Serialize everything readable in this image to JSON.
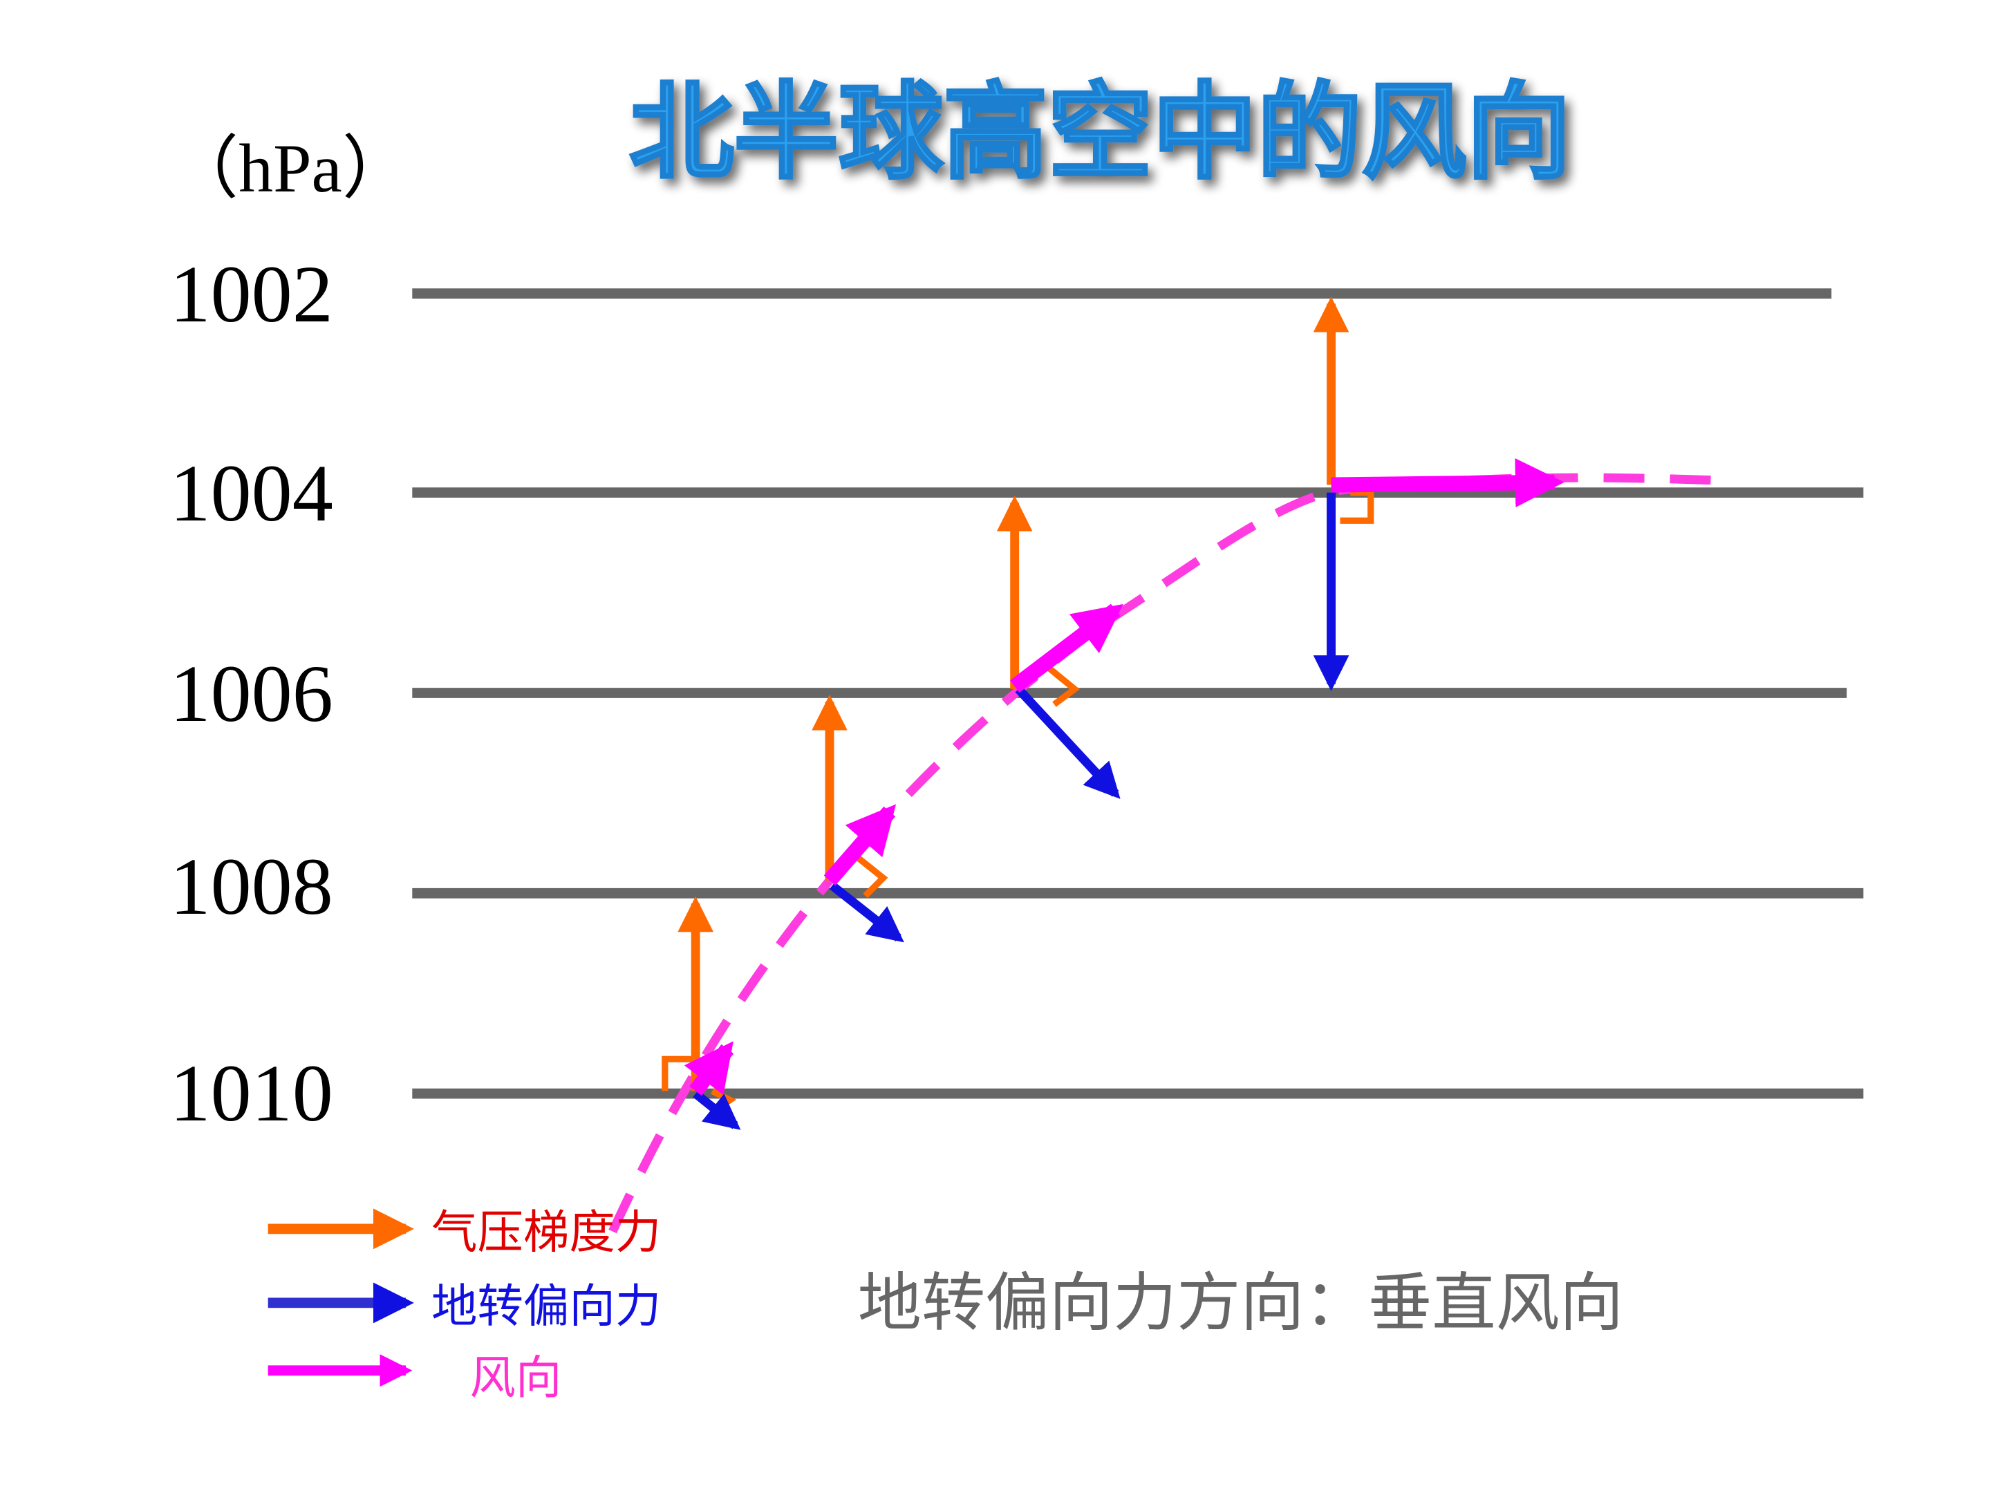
{
  "title": "北半球高空中的风向",
  "unit": "（hPa）",
  "isobars": [
    "1002",
    "1004",
    "1006",
    "1008",
    "1010"
  ],
  "legend": [
    "气压梯度力",
    "地转偏向力",
    "风向"
  ],
  "note": "地转偏向力方向：垂直风向"
}
